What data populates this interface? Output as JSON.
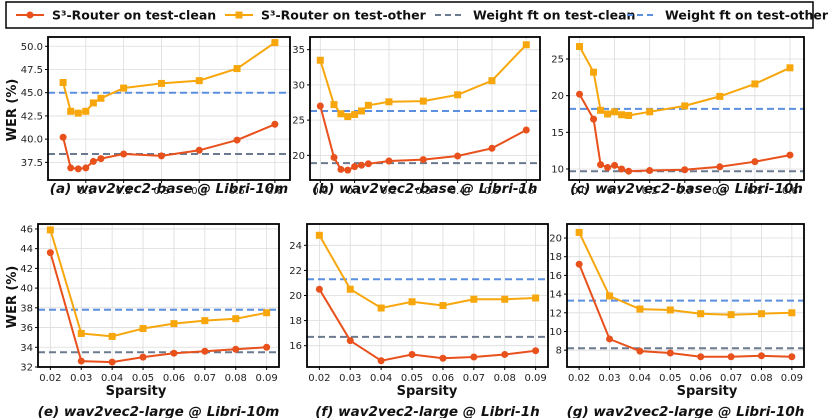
{
  "legend": {
    "s3_clean": "S³-Router on test-clean",
    "s3_other": "S³-Router on test-other",
    "wf_clean": "Weight ft on test-clean",
    "wf_other": "Weight ft on test-other"
  },
  "colors": {
    "s3_clean": "#e8501c",
    "s3_other": "#f7a70c",
    "wf_clean": "#6b7a8f",
    "wf_other": "#5b8fe0"
  },
  "ylabel": "WER (%)",
  "xlabel": "Sparsity",
  "chart_data": [
    {
      "type": "line",
      "title": "(a) wav2vec2-base @ Libri-10m",
      "xlim": [
        0.0,
        0.64
      ],
      "ylim": [
        35.6,
        51.0
      ],
      "xticks": [
        0.1,
        0.2,
        0.3,
        0.4,
        0.5,
        0.6
      ],
      "xtick_labels": [
        "0.1",
        "0.2",
        "0.3",
        "0.4",
        "0.5",
        "0.6"
      ],
      "yticks": [
        37.5,
        40.0,
        42.5,
        45.0,
        47.5,
        50.0
      ],
      "ytick_labels": [
        "37.5",
        "40.0",
        "42.5",
        "45.0",
        "47.5",
        "50.0"
      ],
      "x": [
        0.04,
        0.06,
        0.08,
        0.1,
        0.12,
        0.14,
        0.2,
        0.3,
        0.4,
        0.5,
        0.6
      ],
      "series": [
        {
          "name": "S³-Router on test-clean",
          "key": "s3_clean",
          "values": [
            40.2,
            36.9,
            36.8,
            36.9,
            37.6,
            37.9,
            38.4,
            38.2,
            38.8,
            39.9,
            41.6
          ]
        },
        {
          "name": "S³-Router on test-other",
          "key": "s3_other",
          "values": [
            46.1,
            43.0,
            42.8,
            43.0,
            43.9,
            44.4,
            45.5,
            46.0,
            46.3,
            47.6,
            50.4
          ]
        }
      ],
      "baselines": [
        {
          "name": "Weight ft on test-clean",
          "key": "wf_clean",
          "value": 38.4
        },
        {
          "name": "Weight ft on test-other",
          "key": "wf_other",
          "value": 45.0
        }
      ]
    },
    {
      "type": "line",
      "title": "(b) wav2vec2-base @ Libri-1h",
      "xlim": [
        -0.03,
        0.64
      ],
      "ylim": [
        16.5,
        36.8
      ],
      "xticks": [
        0.0,
        0.1,
        0.2,
        0.3,
        0.4,
        0.5,
        0.6
      ],
      "xtick_labels": [
        "0.0",
        "0.1",
        "0.2",
        "0.3",
        "0.4",
        "0.5",
        "0.6"
      ],
      "yticks": [
        20,
        25,
        30,
        35
      ],
      "ytick_labels": [
        "20",
        "25",
        "30",
        "35"
      ],
      "x": [
        0.0,
        0.04,
        0.06,
        0.08,
        0.1,
        0.12,
        0.14,
        0.2,
        0.3,
        0.4,
        0.5,
        0.6
      ],
      "series": [
        {
          "name": "S³-Router on test-clean",
          "key": "s3_clean",
          "values": [
            27.0,
            19.7,
            18.0,
            17.9,
            18.4,
            18.6,
            18.8,
            19.2,
            19.4,
            19.9,
            21.0,
            23.6
          ]
        },
        {
          "name": "S³-Router on test-other",
          "key": "s3_other",
          "values": [
            33.5,
            27.2,
            25.9,
            25.5,
            25.8,
            26.3,
            27.1,
            27.6,
            27.7,
            28.6,
            30.6,
            35.7
          ]
        }
      ],
      "baselines": [
        {
          "name": "Weight ft on test-clean",
          "key": "wf_clean",
          "value": 18.9
        },
        {
          "name": "Weight ft on test-other",
          "key": "wf_other",
          "value": 26.3
        }
      ]
    },
    {
      "type": "line",
      "title": "(c) wav2vec2-base @ Libri-10h",
      "xlim": [
        -0.03,
        0.64
      ],
      "ylim": [
        8.5,
        28.0
      ],
      "xticks": [
        0.0,
        0.1,
        0.2,
        0.3,
        0.4,
        0.5,
        0.6
      ],
      "xtick_labels": [
        "0.0",
        "0.1",
        "0.2",
        "0.3",
        "0.4",
        "0.5",
        "0.6"
      ],
      "yticks": [
        10,
        15,
        20,
        25
      ],
      "ytick_labels": [
        "10",
        "15",
        "20",
        "25"
      ],
      "x": [
        0.0,
        0.04,
        0.06,
        0.08,
        0.1,
        0.12,
        0.14,
        0.2,
        0.3,
        0.4,
        0.5,
        0.6
      ],
      "series": [
        {
          "name": "S³-Router on test-clean",
          "key": "s3_clean",
          "values": [
            20.2,
            16.8,
            10.6,
            10.2,
            10.5,
            10.0,
            9.7,
            9.8,
            9.9,
            10.3,
            11.0,
            11.9
          ]
        },
        {
          "name": "S³-Router on test-other",
          "key": "s3_other",
          "values": [
            26.7,
            23.2,
            18.0,
            17.5,
            17.8,
            17.4,
            17.3,
            17.8,
            18.6,
            19.9,
            21.6,
            23.8
          ]
        }
      ],
      "baselines": [
        {
          "name": "Weight ft on test-clean",
          "key": "wf_clean",
          "value": 9.7
        },
        {
          "name": "Weight ft on test-other",
          "key": "wf_other",
          "value": 18.2
        }
      ]
    },
    {
      "type": "line",
      "title": "(e) wav2vec2-large @ Libri-10m",
      "xlim": [
        0.016,
        0.094
      ],
      "ylim": [
        32.0,
        46.5
      ],
      "xticks": [
        0.02,
        0.03,
        0.04,
        0.05,
        0.06,
        0.07,
        0.08,
        0.09
      ],
      "xtick_labels": [
        "0.02",
        "0.03",
        "0.04",
        "0.05",
        "0.06",
        "0.07",
        "0.08",
        "0.09"
      ],
      "yticks": [
        32,
        34,
        36,
        38,
        40,
        42,
        44,
        46
      ],
      "ytick_labels": [
        "32",
        "34",
        "36",
        "38",
        "40",
        "42",
        "44",
        "46"
      ],
      "x": [
        0.02,
        0.03,
        0.04,
        0.05,
        0.06,
        0.07,
        0.08,
        0.09
      ],
      "series": [
        {
          "name": "S³-Router on test-clean",
          "key": "s3_clean",
          "values": [
            43.6,
            32.6,
            32.5,
            33.0,
            33.4,
            33.6,
            33.8,
            34.0
          ]
        },
        {
          "name": "S³-Router on test-other",
          "key": "s3_other",
          "values": [
            45.9,
            35.4,
            35.1,
            35.9,
            36.4,
            36.7,
            36.9,
            37.5
          ]
        }
      ],
      "baselines": [
        {
          "name": "Weight ft on test-clean",
          "key": "wf_clean",
          "value": 33.5
        },
        {
          "name": "Weight ft on test-other",
          "key": "wf_other",
          "value": 37.8
        }
      ]
    },
    {
      "type": "line",
      "title": "(f) wav2vec2-large @ Libri-1h",
      "xlim": [
        0.016,
        0.094
      ],
      "ylim": [
        14.3,
        25.7
      ],
      "xticks": [
        0.02,
        0.03,
        0.04,
        0.05,
        0.06,
        0.07,
        0.08,
        0.09
      ],
      "xtick_labels": [
        "0.02",
        "0.03",
        "0.04",
        "0.05",
        "0.06",
        "0.07",
        "0.08",
        "0.09"
      ],
      "yticks": [
        16,
        18,
        20,
        22,
        24
      ],
      "ytick_labels": [
        "16",
        "18",
        "20",
        "22",
        "24"
      ],
      "x": [
        0.02,
        0.03,
        0.04,
        0.05,
        0.06,
        0.07,
        0.08,
        0.09
      ],
      "series": [
        {
          "name": "S³-Router on test-clean",
          "key": "s3_clean",
          "values": [
            20.5,
            16.4,
            14.8,
            15.3,
            15.0,
            15.1,
            15.3,
            15.6
          ]
        },
        {
          "name": "S³-Router on test-other",
          "key": "s3_other",
          "values": [
            24.8,
            20.5,
            19.0,
            19.5,
            19.2,
            19.7,
            19.7,
            19.8
          ]
        }
      ],
      "baselines": [
        {
          "name": "Weight ft on test-clean",
          "key": "wf_clean",
          "value": 16.7
        },
        {
          "name": "Weight ft on test-other",
          "key": "wf_other",
          "value": 21.3
        }
      ]
    },
    {
      "type": "line",
      "title": "(g) wav2vec2-large @ Libri-10h",
      "xlim": [
        0.016,
        0.094
      ],
      "ylim": [
        6.2,
        21.5
      ],
      "xticks": [
        0.02,
        0.03,
        0.04,
        0.05,
        0.06,
        0.07,
        0.08,
        0.09
      ],
      "xtick_labels": [
        "0.02",
        "0.03",
        "0.04",
        "0.05",
        "0.06",
        "0.07",
        "0.08",
        "0.09"
      ],
      "yticks": [
        8,
        10,
        12,
        14,
        16,
        18,
        20
      ],
      "ytick_labels": [
        "8",
        "10",
        "12",
        "14",
        "16",
        "18",
        "20"
      ],
      "x": [
        0.02,
        0.03,
        0.04,
        0.05,
        0.06,
        0.07,
        0.08,
        0.09
      ],
      "series": [
        {
          "name": "S³-Router on test-clean",
          "key": "s3_clean",
          "values": [
            17.2,
            9.2,
            7.9,
            7.7,
            7.3,
            7.3,
            7.4,
            7.3
          ]
        },
        {
          "name": "S³-Router on test-other",
          "key": "s3_other",
          "values": [
            20.6,
            13.8,
            12.4,
            12.3,
            11.9,
            11.8,
            11.9,
            12.0
          ]
        }
      ],
      "baselines": [
        {
          "name": "Weight ft on test-clean",
          "key": "wf_clean",
          "value": 8.2
        },
        {
          "name": "Weight ft on test-other",
          "key": "wf_other",
          "value": 13.3
        }
      ]
    }
  ]
}
